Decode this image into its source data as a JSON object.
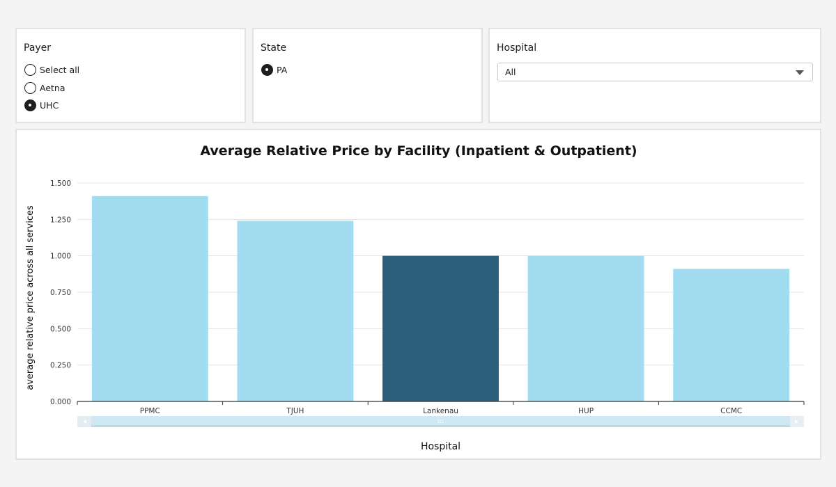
{
  "filters": {
    "payer": {
      "title": "Payer",
      "options": [
        {
          "label": "Select all",
          "checked": false
        },
        {
          "label": "Aetna",
          "checked": false
        },
        {
          "label": "UHC",
          "checked": true
        }
      ]
    },
    "state": {
      "title": "State",
      "options": [
        {
          "label": "PA",
          "checked": true
        }
      ]
    },
    "hospital": {
      "title": "Hospital",
      "selected": "All"
    }
  },
  "colors": {
    "bar": "#a2dcf0",
    "bar_highlight": "#2a5e7a",
    "grid": "#e4e4e4",
    "axis": "#333333",
    "scrollbar_track": "#eef3f6",
    "scrollbar_thumb": "#cfe8f3"
  },
  "chart_data": {
    "type": "bar",
    "title": "Average Relative Price by Facility (Inpatient & Outpatient)",
    "xlabel": "Hospital",
    "ylabel": "average relative price across all services",
    "categories": [
      "PPMC",
      "TJUH",
      "Lankenau",
      "HUP",
      "CCMC"
    ],
    "values": [
      1.41,
      1.24,
      1.0,
      1.0,
      0.91
    ],
    "highlight_category": "Lankenau",
    "ylim": [
      0,
      1.5
    ],
    "yticks": [
      "0.000",
      "0.250",
      "0.500",
      "0.750",
      "1.000",
      "1.250",
      "1.500"
    ],
    "grid": true,
    "legend": "none"
  }
}
